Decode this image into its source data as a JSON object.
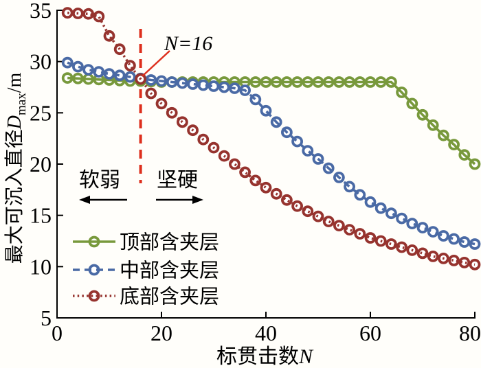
{
  "chart_data": {
    "type": "line",
    "title": "",
    "xlabel": {
      "text": "标贯击数",
      "var": "N"
    },
    "ylabel": {
      "text": "最大可沉入直径",
      "var": "D",
      "sub": "max",
      "unit": "/m"
    },
    "xlim": [
      0,
      80
    ],
    "ylim": [
      5,
      35
    ],
    "xticks": [
      0,
      20,
      40,
      60,
      80
    ],
    "yticks": [
      5,
      10,
      15,
      20,
      25,
      30,
      35
    ],
    "grid": false,
    "legend_position": "lower-left",
    "x": [
      2,
      4,
      6,
      8,
      10,
      12,
      14,
      16,
      18,
      20,
      22,
      24,
      26,
      28,
      30,
      32,
      34,
      36,
      38,
      40,
      42,
      44,
      46,
      48,
      50,
      52,
      54,
      56,
      58,
      60,
      62,
      64,
      66,
      68,
      70,
      72,
      74,
      76,
      78,
      80
    ],
    "series": [
      {
        "name": "顶部含夹层",
        "style": "solid",
        "color": "#78993c",
        "values": [
          28.4,
          28.35,
          28.3,
          28.25,
          28.2,
          28.15,
          28.1,
          28.1,
          28.05,
          28.0,
          28.0,
          28.0,
          28.0,
          28.0,
          28.0,
          28.0,
          28.0,
          28.0,
          28.0,
          28.0,
          28.0,
          28.0,
          28.0,
          28.0,
          28.0,
          28.0,
          28.0,
          28.0,
          28.0,
          28.0,
          28.0,
          28.0,
          27.0,
          25.9,
          24.8,
          23.8,
          22.8,
          21.9,
          20.9,
          20.0
        ]
      },
      {
        "name": "中部含夹层",
        "style": "dashed",
        "color": "#4a6aa5",
        "values": [
          29.9,
          29.5,
          29.2,
          29.0,
          28.8,
          28.65,
          28.5,
          28.35,
          28.2,
          28.1,
          28.0,
          27.9,
          27.8,
          27.7,
          27.6,
          27.5,
          27.4,
          27.2,
          26.3,
          25.2,
          24.1,
          23.1,
          22.2,
          21.3,
          20.5,
          19.6,
          18.7,
          17.8,
          17.0,
          16.3,
          15.7,
          15.2,
          14.7,
          14.2,
          13.8,
          13.4,
          13.0,
          12.7,
          12.4,
          12.2
        ]
      },
      {
        "name": "底部含夹层",
        "style": "dotted",
        "color": "#96332e",
        "values": [
          34.75,
          34.7,
          34.65,
          34.4,
          32.5,
          31.2,
          29.6,
          28.3,
          26.9,
          25.9,
          25.0,
          24.1,
          23.3,
          22.4,
          21.6,
          20.8,
          20.0,
          19.2,
          18.4,
          17.7,
          17.1,
          16.5,
          15.9,
          15.4,
          14.9,
          14.4,
          14.0,
          13.6,
          13.2,
          12.8,
          12.5,
          12.2,
          11.9,
          11.6,
          11.3,
          11.0,
          10.8,
          10.6,
          10.4,
          10.2
        ]
      }
    ],
    "annotations": {
      "vline": {
        "x": 16,
        "color": "#dd2f1d",
        "style": "dashed",
        "label": {
          "var": "N",
          "rest": "=16"
        }
      },
      "zone_left": "软弱",
      "zone_right": "坚硬"
    },
    "colors": {
      "axis": "#000000",
      "marker_fill": "#ffffff"
    }
  }
}
